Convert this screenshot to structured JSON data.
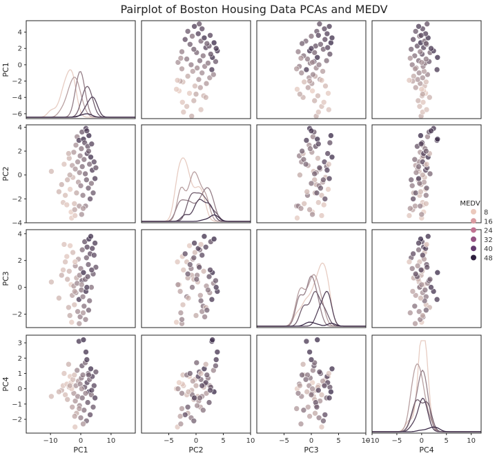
{
  "figure": {
    "title": "Pairplot of Boston Housing Data PCAs and MEDV"
  },
  "chart_data": {
    "type": "scatter",
    "title": "Pairplot of Boston Housing Data PCAs and MEDV",
    "variables": [
      "PC1",
      "PC2",
      "PC3",
      "PC4"
    ],
    "hue": "MEDV",
    "ranges": {
      "PC1": [
        -18,
        18
      ],
      "PC2": [
        -10,
        10
      ],
      "PC3": [
        -10,
        10
      ],
      "PC4": [
        -10,
        12
      ]
    },
    "row_ranges": {
      "PC1": [
        -6.6,
        5.4
      ],
      "PC2": [
        -4.0,
        4.2
      ],
      "PC3": [
        -3.0,
        4.3
      ],
      "PC4": [
        -2.9,
        3.5
      ]
    },
    "x_ticks": {
      "PC1": [
        -10,
        0,
        10
      ],
      "PC2": [
        -5,
        0,
        5,
        10
      ],
      "PC3": [
        -5,
        0,
        5,
        10
      ],
      "PC4": [
        -10,
        -5,
        0,
        5,
        10
      ]
    },
    "y_ticks": {
      "PC1": [
        -6,
        -4,
        -2,
        0,
        2,
        4
      ],
      "PC2": [
        -4,
        -2,
        0,
        2,
        4
      ],
      "PC3": [
        -2,
        0,
        2,
        4
      ],
      "PC4": [
        -2,
        -1,
        0,
        1,
        2,
        3
      ]
    },
    "x_tick_labels": {
      "PC1": [
        "−10",
        "0",
        "10"
      ],
      "PC2": [
        "−5",
        "0",
        "5",
        "10"
      ],
      "PC3": [
        "−5",
        "0",
        "5",
        "10"
      ],
      "PC4": [
        "−10",
        "−5",
        "0",
        "5",
        "10"
      ]
    },
    "y_tick_labels": {
      "PC1": [
        "−6",
        "−4",
        "−2",
        "0",
        "2",
        "4"
      ],
      "PC2": [
        "−4",
        "−2",
        "0",
        "2",
        "4"
      ],
      "PC3": [
        "−2",
        "0",
        "2",
        "4"
      ],
      "PC4": [
        "−2",
        "−1",
        "0",
        "1",
        "2",
        "3"
      ]
    },
    "legend": {
      "title": "MEDV",
      "entries": [
        "8",
        "16",
        "24",
        "32",
        "40",
        "48"
      ],
      "colors": [
        "#ebc9bd",
        "#d99ba1",
        "#c07392",
        "#955383",
        "#633a6e",
        "#2d1e3e"
      ],
      "placement": "right"
    },
    "point_color_range": [
      "#f0d4c8",
      "#2d1e3e"
    ],
    "point_opacity": 0.75,
    "grid": false,
    "points": [
      [
        -9.7,
        0.3,
        0.4,
        -0.5,
        12
      ],
      [
        -6.3,
        -0.8,
        0.9,
        -0.1,
        15
      ],
      [
        -5.8,
        -2.3,
        1.3,
        0.2,
        10
      ],
      [
        -5.1,
        -1.7,
        1.9,
        -0.4,
        11
      ],
      [
        -4.6,
        -2.5,
        2.3,
        0.3,
        9
      ],
      [
        -4.4,
        -0.4,
        0.6,
        -0.7,
        14
      ],
      [
        -3.8,
        1.4,
        1.2,
        0.1,
        13
      ],
      [
        -3.5,
        -1.2,
        3.1,
        0.8,
        8
      ],
      [
        -3.2,
        -3.1,
        0.2,
        0.4,
        7
      ],
      [
        -2.8,
        0.8,
        -0.6,
        -1.2,
        18
      ],
      [
        -2.6,
        -0.2,
        2.6,
        0.6,
        12
      ],
      [
        -2.3,
        1.9,
        0.1,
        -0.3,
        20
      ],
      [
        -2.1,
        -2.4,
        -1.3,
        0.9,
        11
      ],
      [
        -1.8,
        0.5,
        1.6,
        -0.8,
        21
      ],
      [
        -1.6,
        2.5,
        -0.4,
        0.2,
        22
      ],
      [
        -1.4,
        -1.5,
        0.7,
        -1.6,
        16
      ],
      [
        -1.2,
        3.2,
        0.3,
        1.2,
        25
      ],
      [
        -1.0,
        1.1,
        -1.8,
        -0.5,
        23
      ],
      [
        -0.8,
        -0.6,
        2.1,
        0.5,
        19
      ],
      [
        -0.6,
        2.9,
        -0.9,
        3.1,
        44
      ],
      [
        -0.4,
        0.2,
        0.9,
        -1.1,
        24
      ],
      [
        -0.2,
        1.6,
        -2.2,
        0.3,
        26
      ],
      [
        0.0,
        -0.9,
        1.4,
        -1.9,
        27
      ],
      [
        0.2,
        2.2,
        -0.2,
        0.7,
        29
      ],
      [
        0.4,
        3.6,
        0.5,
        1.5,
        36
      ],
      [
        0.5,
        0.7,
        2.8,
        -0.6,
        31
      ],
      [
        0.7,
        -1.7,
        -0.7,
        0.9,
        28
      ],
      [
        0.9,
        3.0,
        1.1,
        3.2,
        47
      ],
      [
        1.1,
        1.3,
        -1.4,
        -1.4,
        30
      ],
      [
        1.3,
        2.7,
        3.4,
        0.1,
        38
      ],
      [
        1.5,
        0.1,
        0.6,
        1.7,
        33
      ],
      [
        1.7,
        3.9,
        -0.3,
        2.4,
        45
      ],
      [
        1.9,
        -0.4,
        2.2,
        -2.1,
        34
      ],
      [
        2.1,
        1.8,
        3.0,
        0.4,
        41
      ],
      [
        2.3,
        2.4,
        0.8,
        -0.9,
        37
      ],
      [
        2.5,
        -1.1,
        1.7,
        1.0,
        35
      ],
      [
        2.7,
        3.3,
        3.6,
        -0.2,
        48
      ],
      [
        2.9,
        0.9,
        -1.0,
        0.6,
        32
      ],
      [
        3.1,
        -2.0,
        2.5,
        -1.7,
        39
      ],
      [
        3.3,
        1.5,
        3.8,
        1.3,
        46
      ],
      [
        3.5,
        -0.7,
        0.0,
        -0.4,
        30
      ],
      [
        3.8,
        0.4,
        2.9,
        0.8,
        42
      ],
      [
        4.1,
        -1.5,
        1.0,
        -1.2,
        36
      ],
      [
        4.4,
        1.1,
        2.4,
        0.2,
        40
      ],
      [
        4.7,
        -0.3,
        3.3,
        -0.6,
        43
      ],
      [
        5.0,
        0.6,
        1.5,
        1.1,
        38
      ],
      [
        -7.2,
        -1.4,
        -0.8,
        -0.2,
        13
      ],
      [
        -3.0,
        -3.6,
        -2.6,
        0.0,
        8
      ],
      [
        -2.0,
        -2.9,
        -0.3,
        -1.8,
        17
      ],
      [
        -0.5,
        -2.6,
        -2.7,
        -1.3,
        20
      ],
      [
        0.3,
        -3.3,
        0.2,
        0.0,
        22
      ],
      [
        1.6,
        -2.6,
        -2.4,
        -0.3,
        26
      ],
      [
        -5.5,
        0.9,
        3.2,
        1.0,
        10
      ],
      [
        -4.0,
        1.8,
        -1.5,
        1.6,
        14
      ],
      [
        -1.9,
        -3.4,
        1.9,
        -2.5,
        9
      ],
      [
        0.8,
        -2.8,
        -1.9,
        -2.3,
        21
      ],
      [
        2.0,
        3.7,
        0.0,
        1.9,
        44
      ],
      [
        2.6,
        2.0,
        -1.7,
        0.9,
        34
      ],
      [
        3.6,
        2.6,
        1.3,
        -0.1,
        41
      ],
      [
        -3.6,
        0.0,
        -2.1,
        0.2,
        16
      ]
    ]
  }
}
